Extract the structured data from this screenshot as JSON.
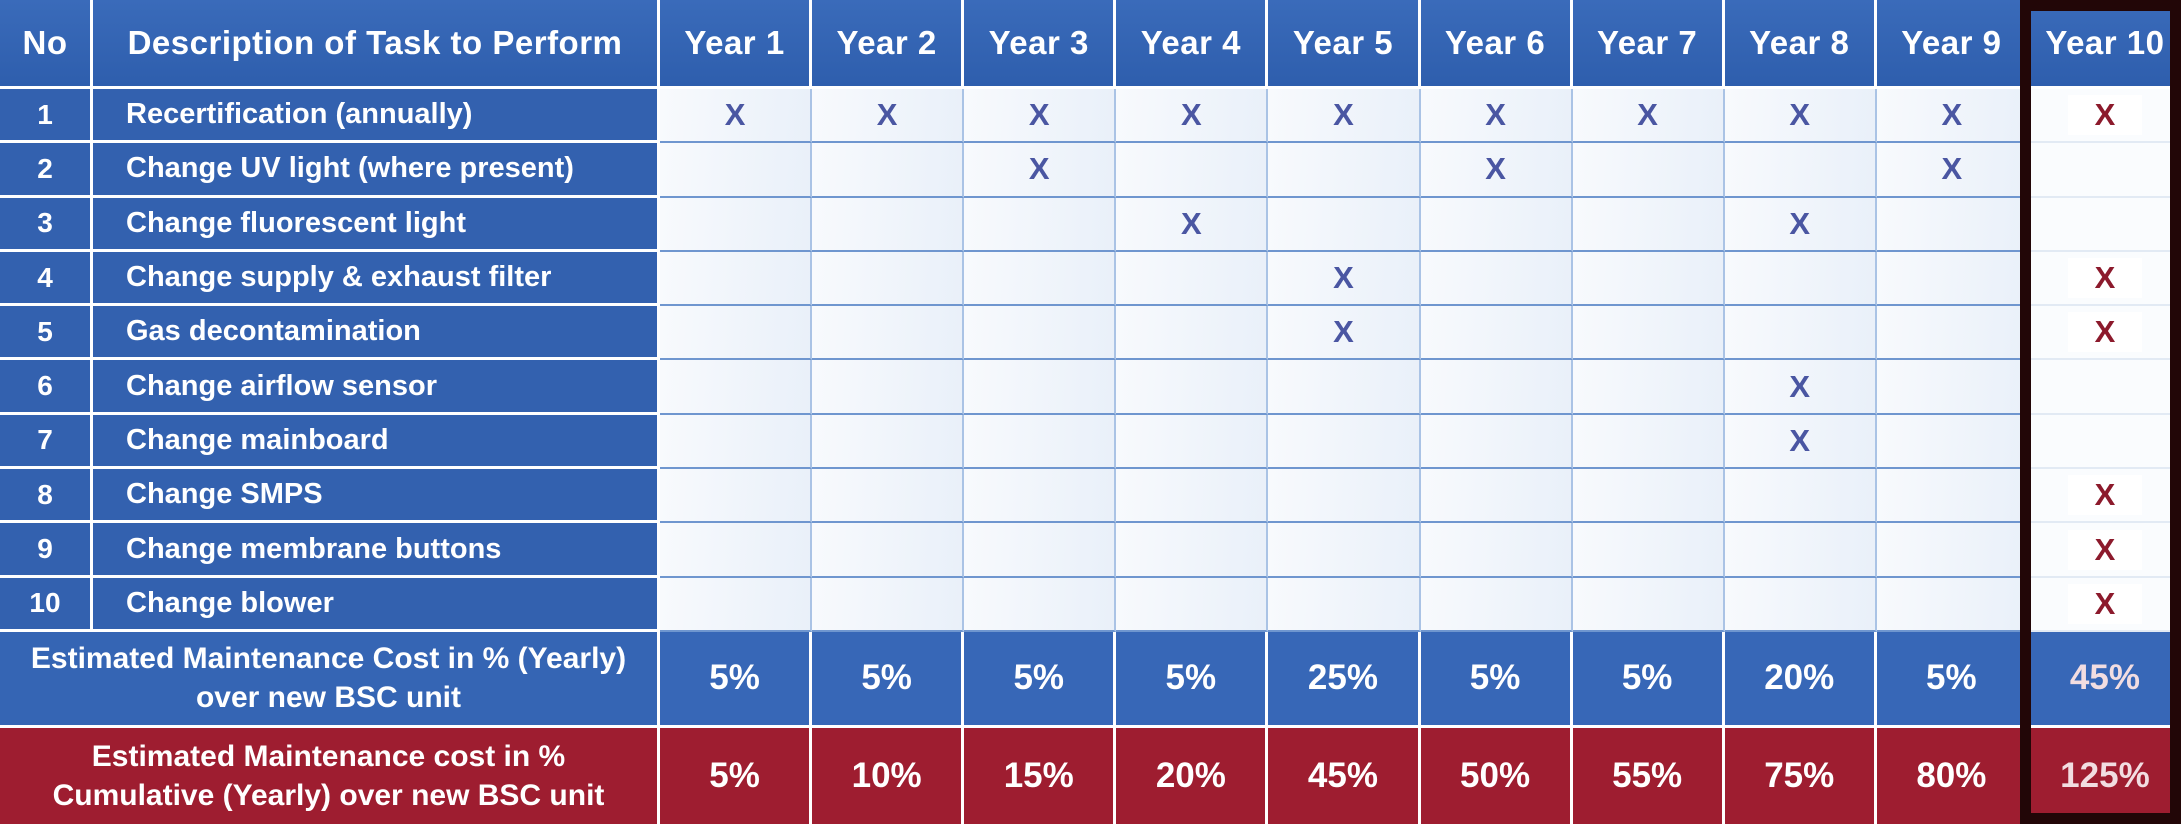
{
  "table": {
    "columns": {
      "no": "No",
      "description": "Description of Task to Perform",
      "years": [
        "Year 1",
        "Year 2",
        "Year 3",
        "Year 4",
        "Year 5",
        "Year 6",
        "Year 7",
        "Year 8",
        "Year 9",
        "Year 10"
      ]
    },
    "mark_glyph": "X",
    "tasks": [
      {
        "no": "1",
        "label": "Recertification (annually)",
        "marks": [
          1,
          2,
          3,
          4,
          5,
          6,
          7,
          8,
          9,
          10
        ]
      },
      {
        "no": "2",
        "label": "Change UV light (where present)",
        "marks": [
          3,
          6,
          9
        ]
      },
      {
        "no": "3",
        "label": "Change fluorescent light",
        "marks": [
          4,
          8
        ]
      },
      {
        "no": "4",
        "label": "Change supply & exhaust filter",
        "marks": [
          5,
          10
        ]
      },
      {
        "no": "5",
        "label": "Gas decontamination",
        "marks": [
          5,
          10
        ]
      },
      {
        "no": "6",
        "label": "Change airflow sensor",
        "marks": [
          8
        ]
      },
      {
        "no": "7",
        "label": "Change mainboard",
        "marks": [
          8
        ]
      },
      {
        "no": "8",
        "label": "Change SMPS",
        "marks": [
          10
        ]
      },
      {
        "no": "9",
        "label": "Change membrane buttons",
        "marks": [
          10
        ]
      },
      {
        "no": "10",
        "label": "Change blower",
        "marks": [
          10
        ]
      }
    ],
    "yearly_row": {
      "label": "Estimated Maintenance Cost in % (Yearly)\nover new BSC unit",
      "values": [
        "5%",
        "5%",
        "5%",
        "5%",
        "25%",
        "5%",
        "5%",
        "20%",
        "5%",
        "45%"
      ]
    },
    "cumulative_row": {
      "label": "Estimated Maintenance cost in %\nCumulative (Yearly) over new BSC unit",
      "values": [
        "5%",
        "10%",
        "15%",
        "20%",
        "45%",
        "50%",
        "55%",
        "75%",
        "80%",
        "125%"
      ]
    },
    "highlighted_year": "Year 10"
  },
  "colors": {
    "header_blue": "#3465b3",
    "task_row_blue": "#3361af",
    "cell_bg_light": "#f3f7fc",
    "grid_line_blue": "#6f96cf",
    "yearly_row_blue": "#3767b7",
    "cumulative_row_red": "#9e1d30",
    "x_blue": "#4a56a2",
    "x_red": "#8c1a2c",
    "year10_outline": "#220607",
    "separator_white": "#ffffff"
  }
}
